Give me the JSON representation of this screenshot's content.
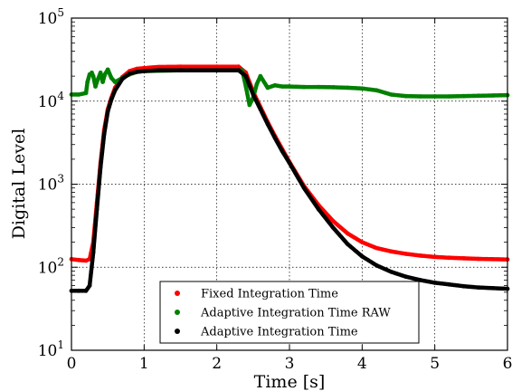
{
  "chart_data": {
    "type": "scatter",
    "xlabel": "Time [s]",
    "ylabel": "Digital Level",
    "xlim": [
      0,
      6
    ],
    "ylim": [
      10,
      100000
    ],
    "yscale": "log",
    "grid": true,
    "legend_position": "bottom-center",
    "x_ticks": [
      "0",
      "1",
      "2",
      "3",
      "4",
      "5",
      "6"
    ],
    "y_ticks": [
      {
        "value": 10,
        "base": "10",
        "exp": "1"
      },
      {
        "value": 100,
        "base": "10",
        "exp": "2"
      },
      {
        "value": 1000,
        "base": "10",
        "exp": "3"
      },
      {
        "value": 10000,
        "base": "10",
        "exp": "4"
      },
      {
        "value": 100000,
        "base": "10",
        "exp": "5"
      }
    ],
    "series": [
      {
        "name": "Fixed Integration Time",
        "color": "#ff0000",
        "x": [
          0,
          0.1,
          0.2,
          0.25,
          0.3,
          0.35,
          0.4,
          0.45,
          0.5,
          0.55,
          0.6,
          0.7,
          0.8,
          0.9,
          1.0,
          1.2,
          1.5,
          2.0,
          2.3,
          2.4,
          2.5,
          2.6,
          2.7,
          2.8,
          2.9,
          3.0,
          3.2,
          3.4,
          3.6,
          3.8,
          4.0,
          4.2,
          4.4,
          4.6,
          4.8,
          5.0,
          5.2,
          5.4,
          5.6,
          5.8,
          6.0
        ],
        "y": [
          125,
          122,
          120,
          125,
          200,
          600,
          1800,
          4500,
          8000,
          11000,
          14500,
          19500,
          23000,
          24500,
          25000,
          25800,
          26000,
          26000,
          26000,
          22000,
          13000,
          8500,
          5600,
          3800,
          2650,
          1850,
          950,
          560,
          360,
          255,
          200,
          170,
          155,
          145,
          138,
          133,
          130,
          128,
          126,
          125,
          124
        ]
      },
      {
        "name": "Adaptive Integration Time RAW",
        "color": "#008000",
        "x": [
          0,
          0.1,
          0.2,
          0.22,
          0.25,
          0.28,
          0.3,
          0.33,
          0.36,
          0.4,
          0.43,
          0.46,
          0.5,
          0.55,
          0.6,
          0.7,
          0.8,
          0.9,
          1.0,
          1.5,
          2.0,
          2.35,
          2.4,
          2.45,
          2.5,
          2.55,
          2.6,
          2.7,
          2.8,
          2.9,
          3.0,
          3.2,
          3.4,
          3.6,
          3.8,
          4.0,
          4.2,
          4.4,
          4.6,
          4.8,
          5.0,
          5.2,
          5.4,
          5.6,
          5.8,
          6.0
        ],
        "y": [
          12000,
          12000,
          12500,
          17000,
          21000,
          22000,
          20000,
          15000,
          18000,
          22000,
          17000,
          21000,
          24000,
          19000,
          17000,
          19000,
          21000,
          22500,
          23000,
          23500,
          23500,
          23500,
          15000,
          9000,
          11000,
          16000,
          20000,
          14500,
          15500,
          15000,
          15000,
          14800,
          14800,
          14700,
          14500,
          14200,
          13500,
          12000,
          11500,
          11400,
          11400,
          11400,
          11500,
          11600,
          11700,
          11800
        ]
      },
      {
        "name": "Adaptive Integration Time",
        "color": "#000000",
        "x": [
          0,
          0.1,
          0.2,
          0.25,
          0.3,
          0.35,
          0.4,
          0.45,
          0.5,
          0.55,
          0.6,
          0.7,
          0.8,
          0.9,
          1.0,
          1.2,
          1.5,
          2.0,
          2.3,
          2.4,
          2.5,
          2.6,
          2.7,
          2.8,
          2.9,
          3.0,
          3.2,
          3.4,
          3.6,
          3.8,
          4.0,
          4.2,
          4.4,
          4.6,
          4.8,
          5.0,
          5.2,
          5.4,
          5.6,
          5.8,
          6.0
        ],
        "y": [
          52,
          52,
          52,
          60,
          150,
          500,
          1600,
          4000,
          7500,
          10500,
          13500,
          18500,
          21500,
          22500,
          23000,
          23500,
          23500,
          23500,
          23500,
          20000,
          12000,
          8000,
          5300,
          3600,
          2500,
          1800,
          900,
          500,
          300,
          190,
          135,
          105,
          88,
          77,
          70,
          65,
          62,
          59,
          57,
          56,
          55
        ]
      }
    ]
  }
}
